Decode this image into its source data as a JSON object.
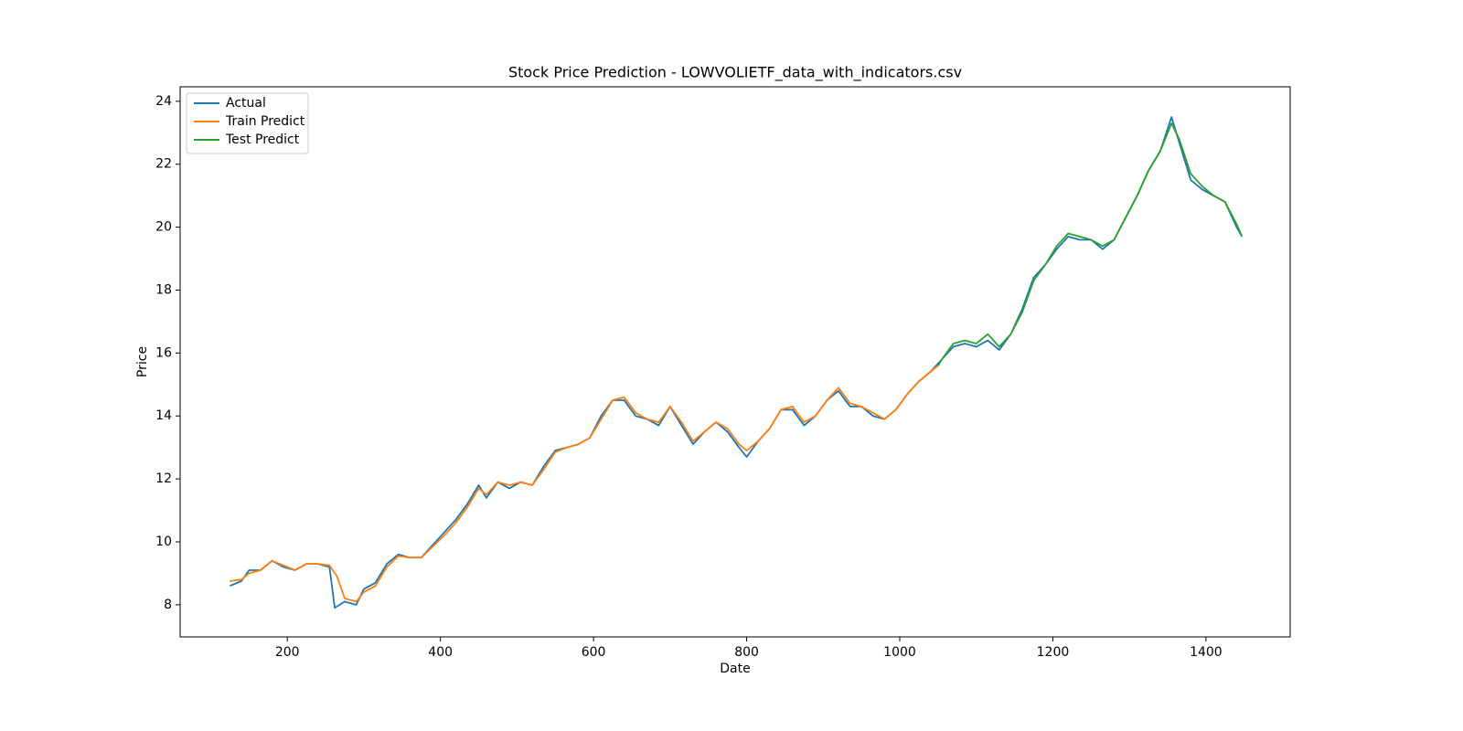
{
  "chart_data": {
    "type": "line",
    "title": "Stock Price Prediction - LOWVOLIETF_data_with_indicators.csv",
    "x_label": "Date",
    "y_label": "Price",
    "xlim": [
      60,
      1510
    ],
    "ylim": [
      6.98,
      24.46
    ],
    "xticks": [
      200,
      400,
      600,
      800,
      1000,
      1200,
      1400
    ],
    "yticks": [
      8,
      10,
      12,
      14,
      16,
      18,
      20,
      22,
      24
    ],
    "legend": "upper left",
    "series": [
      {
        "name": "Actual",
        "color": "#1f77b4",
        "x": [
          125,
          140,
          150,
          165,
          180,
          195,
          210,
          225,
          240,
          255,
          262,
          275,
          290,
          300,
          315,
          330,
          345,
          360,
          375,
          390,
          405,
          420,
          435,
          450,
          460,
          475,
          490,
          505,
          520,
          535,
          550,
          565,
          580,
          595,
          610,
          625,
          640,
          655,
          670,
          685,
          700,
          715,
          730,
          745,
          760,
          775,
          790,
          800,
          815,
          830,
          845,
          860,
          875,
          890,
          905,
          920,
          935,
          950,
          965,
          980,
          995,
          1010,
          1025,
          1040,
          1055,
          1070,
          1085,
          1100,
          1115,
          1130,
          1145,
          1160,
          1175,
          1190,
          1205,
          1220,
          1235,
          1250,
          1265,
          1280,
          1295,
          1310,
          1325,
          1340,
          1355,
          1365,
          1380,
          1395,
          1410,
          1425,
          1440,
          1447
        ],
        "values": [
          8.6,
          8.75,
          9.1,
          9.1,
          9.4,
          9.2,
          9.1,
          9.3,
          9.3,
          9.2,
          7.9,
          8.1,
          8.0,
          8.5,
          8.7,
          9.3,
          9.6,
          9.5,
          9.5,
          9.9,
          10.3,
          10.7,
          11.2,
          11.8,
          11.4,
          11.9,
          11.7,
          11.9,
          11.8,
          12.4,
          12.9,
          13.0,
          13.1,
          13.3,
          14.0,
          14.5,
          14.5,
          14.0,
          13.9,
          13.7,
          14.3,
          13.7,
          13.1,
          13.5,
          13.8,
          13.5,
          13.0,
          12.7,
          13.2,
          13.6,
          14.2,
          14.2,
          13.7,
          14.0,
          14.5,
          14.8,
          14.3,
          14.3,
          14.0,
          13.9,
          14.2,
          14.7,
          15.1,
          15.4,
          15.8,
          16.2,
          16.3,
          16.2,
          16.4,
          16.1,
          16.6,
          17.4,
          18.4,
          18.8,
          19.3,
          19.7,
          19.6,
          19.6,
          19.3,
          19.6,
          20.3,
          21.0,
          21.8,
          22.4,
          23.5,
          22.7,
          21.5,
          21.2,
          21.0,
          20.8,
          20.0,
          19.7
        ]
      },
      {
        "name": "Train Predict",
        "color": "#ff7f0e",
        "x": [
          125,
          140,
          150,
          165,
          180,
          195,
          210,
          225,
          240,
          255,
          265,
          275,
          290,
          300,
          315,
          330,
          345,
          360,
          375,
          390,
          405,
          420,
          435,
          450,
          460,
          475,
          490,
          505,
          520,
          535,
          550,
          565,
          580,
          595,
          610,
          625,
          640,
          655,
          670,
          685,
          700,
          715,
          730,
          745,
          760,
          775,
          790,
          800,
          815,
          830,
          845,
          860,
          875,
          890,
          905,
          920,
          935,
          950,
          965,
          980,
          995,
          1010,
          1025,
          1040,
          1050
        ],
        "values": [
          8.75,
          8.8,
          9.0,
          9.1,
          9.4,
          9.25,
          9.1,
          9.3,
          9.3,
          9.25,
          8.9,
          8.2,
          8.1,
          8.4,
          8.6,
          9.2,
          9.55,
          9.5,
          9.5,
          9.85,
          10.2,
          10.6,
          11.1,
          11.7,
          11.5,
          11.9,
          11.8,
          11.9,
          11.8,
          12.3,
          12.85,
          13.0,
          13.1,
          13.3,
          13.9,
          14.5,
          14.6,
          14.1,
          13.9,
          13.8,
          14.3,
          13.8,
          13.2,
          13.5,
          13.8,
          13.6,
          13.1,
          12.9,
          13.2,
          13.6,
          14.2,
          14.3,
          13.8,
          14.0,
          14.5,
          14.9,
          14.4,
          14.3,
          14.1,
          13.9,
          14.2,
          14.7,
          15.1,
          15.4,
          15.6
        ]
      },
      {
        "name": "Test Predict",
        "color": "#2ca02c",
        "x": [
          1050,
          1055,
          1070,
          1085,
          1100,
          1115,
          1130,
          1145,
          1160,
          1175,
          1190,
          1205,
          1220,
          1235,
          1250,
          1265,
          1280,
          1295,
          1310,
          1325,
          1340,
          1355,
          1365,
          1380,
          1395,
          1410,
          1425,
          1440,
          1447
        ],
        "values": [
          15.6,
          15.8,
          16.3,
          16.4,
          16.3,
          16.6,
          16.2,
          16.6,
          17.3,
          18.3,
          18.8,
          19.4,
          19.8,
          19.7,
          19.6,
          19.4,
          19.6,
          20.3,
          21.0,
          21.8,
          22.4,
          23.3,
          22.8,
          21.7,
          21.3,
          21.0,
          20.8,
          20.1,
          19.7
        ]
      }
    ]
  }
}
